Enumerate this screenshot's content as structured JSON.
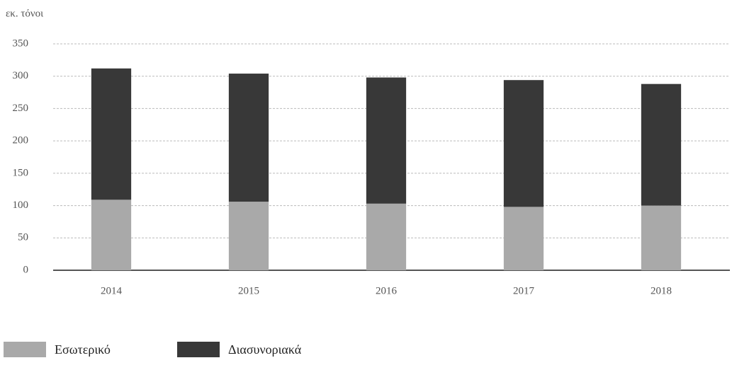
{
  "chart_data": {
    "type": "bar",
    "stacked": true,
    "y_axis_label": "εκ. τόνοι",
    "categories": [
      "2014",
      "2015",
      "2016",
      "2017",
      "2018"
    ],
    "series": [
      {
        "name": "Εσωτερικό",
        "color": "#a9a9a9",
        "values": [
          109,
          106,
          103,
          98,
          100
        ]
      },
      {
        "name": "Διασυνοριακά",
        "color": "#383838",
        "values": [
          203,
          198,
          195,
          196,
          188
        ]
      }
    ],
    "ylim": [
      0,
      350
    ],
    "yticks": [
      0,
      50,
      100,
      150,
      200,
      250,
      300,
      350
    ],
    "grid": true
  }
}
